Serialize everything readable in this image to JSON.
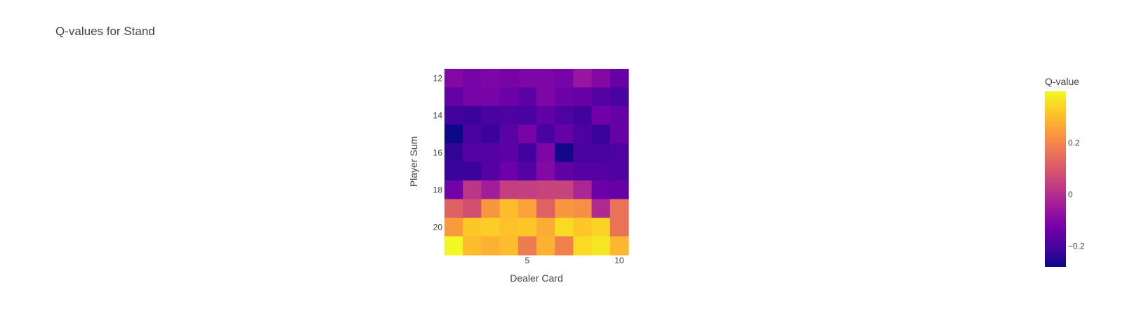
{
  "chart_data": {
    "type": "heatmap",
    "title": "Q-values for Stand",
    "xlabel": "Dealer Card",
    "ylabel": "Player Sum",
    "x": [
      1,
      2,
      3,
      4,
      5,
      6,
      7,
      8,
      9,
      10
    ],
    "y": [
      12,
      13,
      14,
      15,
      16,
      17,
      18,
      19,
      20,
      21
    ],
    "x_ticks": [
      5,
      10
    ],
    "y_ticks": [
      12,
      14,
      16,
      18,
      20
    ],
    "z": [
      [
        -0.1,
        -0.12,
        -0.11,
        -0.12,
        -0.11,
        -0.11,
        -0.12,
        -0.06,
        -0.1,
        -0.15
      ],
      [
        -0.16,
        -0.12,
        -0.12,
        -0.14,
        -0.17,
        -0.11,
        -0.14,
        -0.15,
        -0.18,
        -0.2
      ],
      [
        -0.21,
        -0.22,
        -0.2,
        -0.19,
        -0.2,
        -0.16,
        -0.19,
        -0.21,
        -0.13,
        -0.15
      ],
      [
        -0.28,
        -0.2,
        -0.22,
        -0.17,
        -0.12,
        -0.2,
        -0.15,
        -0.19,
        -0.22,
        -0.15
      ],
      [
        -0.23,
        -0.18,
        -0.18,
        -0.17,
        -0.21,
        -0.11,
        -0.27,
        -0.2,
        -0.2,
        -0.19
      ],
      [
        -0.22,
        -0.22,
        -0.18,
        -0.14,
        -0.18,
        -0.1,
        -0.16,
        -0.18,
        -0.18,
        -0.19
      ],
      [
        -0.13,
        0.02,
        -0.04,
        0.04,
        0.04,
        0.05,
        0.05,
        -0.02,
        -0.14,
        -0.15
      ],
      [
        0.12,
        0.08,
        0.23,
        0.3,
        0.25,
        0.12,
        0.23,
        0.22,
        -0.01,
        0.16
      ],
      [
        0.24,
        0.32,
        0.33,
        0.31,
        0.32,
        0.27,
        0.35,
        0.32,
        0.34,
        0.16
      ],
      [
        0.4,
        0.3,
        0.28,
        0.3,
        0.18,
        0.28,
        0.19,
        0.35,
        0.37,
        0.29
      ]
    ],
    "zmin": -0.28,
    "zmax": 0.4,
    "colorscale": [
      "#0d0887",
      "#46039f",
      "#7201a8",
      "#9c179e",
      "#bd3786",
      "#d8576b",
      "#ed7953",
      "#fb9f3a",
      "#fdca26",
      "#f0f921"
    ],
    "colorbar": {
      "title": "Q-value",
      "ticks": [
        -0.2,
        0,
        0.2
      ],
      "tick_labels": [
        "−0.2",
        "0",
        "0.2"
      ]
    },
    "grid": false,
    "legend": "right"
  }
}
